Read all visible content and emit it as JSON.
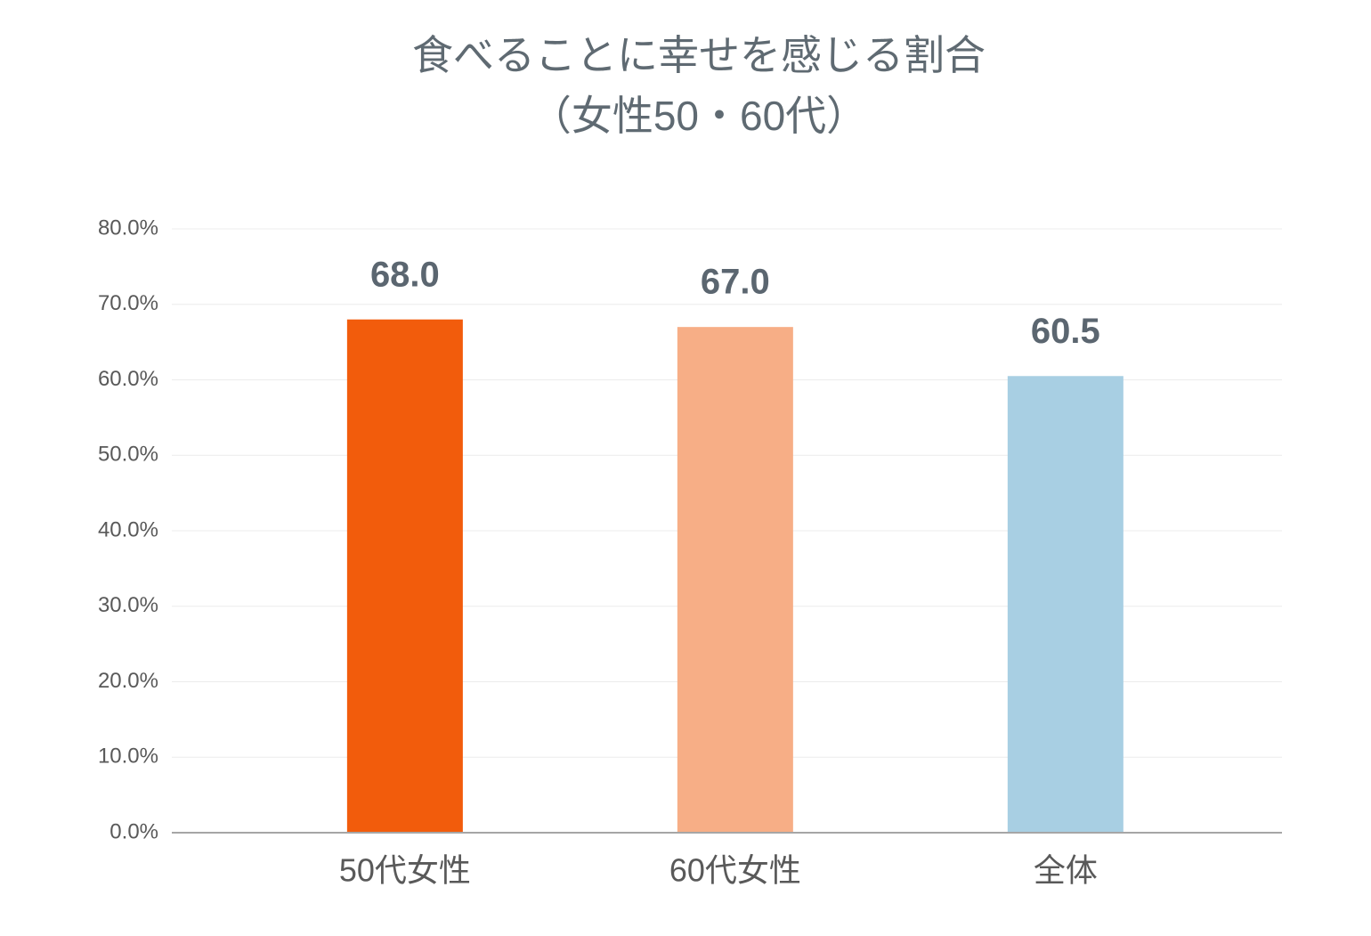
{
  "chart_data": {
    "type": "bar",
    "title": "食べることに幸せを感じる割合",
    "subtitle": "（女性50・60代）",
    "categories": [
      "50代女性",
      "60代女性",
      "全体"
    ],
    "values": [
      68,
      67,
      60.5
    ],
    "value_labels": [
      "68.0",
      "67.0",
      "60.5"
    ],
    "colors": [
      "#f25c0c",
      "#f7ae86",
      "#a8cfe3"
    ],
    "ylim": [
      0,
      80
    ],
    "yticks": [
      {
        "value": 0,
        "label": "0.0%"
      },
      {
        "value": 10,
        "label": "10.0%"
      },
      {
        "value": 20,
        "label": "20.0%"
      },
      {
        "value": 30,
        "label": "30.0%"
      },
      {
        "value": 40,
        "label": "40.0%"
      },
      {
        "value": 50,
        "label": "50.0%"
      },
      {
        "value": 60,
        "label": "60.0%"
      },
      {
        "value": 70,
        "label": "70.0%"
      },
      {
        "value": 80,
        "label": "80.0%"
      }
    ],
    "grid": true
  }
}
